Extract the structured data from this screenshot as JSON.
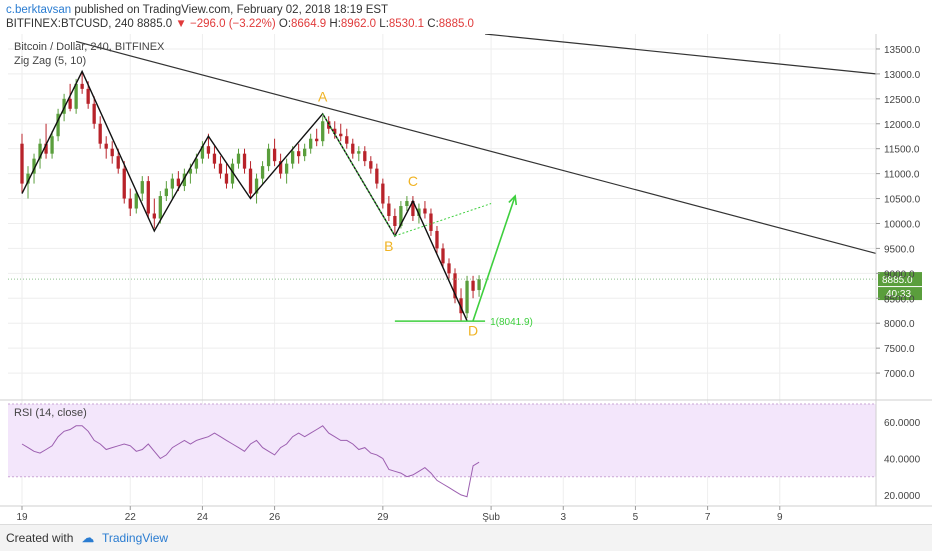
{
  "header": {
    "author": "c.berktavsan",
    "published": "published on TradingView.com, February 02, 2018 18:19 EST",
    "symbol_line_prefix": "BITFINEX:BTCUSD, 240",
    "last": "8885.0",
    "change": "−296.0 (−3.22%)",
    "o_label": "O:",
    "o_val": "8664.9",
    "h_label": "H:",
    "h_val": "8962.0",
    "l_label": "L:",
    "l_val": "8530.1",
    "c_label": "C:",
    "c_val": "8885.0"
  },
  "footer": {
    "created_with": "Created with",
    "brand": "TradingView"
  },
  "colors": {
    "up": "#5a9e3c",
    "down": "#b8232a",
    "accent": "#f0b323",
    "rsi_bg": "#f3e6fb",
    "rsi_line": "#9c5fb0",
    "projection": "#3ecf3e"
  },
  "chart_data": [
    {
      "type": "candlestick",
      "title": "Bitcoin / Dollar, 240, BITFINEX",
      "indicator": "Zig Zag (5, 10)",
      "ylim": [
        6500,
        13800
      ],
      "yticks": [
        "13500.0",
        "13000.0",
        "12500.0",
        "12000.0",
        "11500.0",
        "11000.0",
        "10500.0",
        "10000.0",
        "9500.0",
        "9000.0",
        "8500.0",
        "8000.0",
        "7500.0",
        "7000.0"
      ],
      "last_price_label": "8885.0",
      "countdown_label": "40:33",
      "x_tick_labels": [
        {
          "label": "19",
          "t": 0
        },
        {
          "label": "22",
          "t": 18
        },
        {
          "label": "24",
          "t": 30
        },
        {
          "label": "26",
          "t": 42
        },
        {
          "label": "29",
          "t": 60
        },
        {
          "label": "Şub",
          "t": 78
        },
        {
          "label": "3",
          "t": 90
        },
        {
          "label": "5",
          "t": 102
        },
        {
          "label": "7",
          "t": 114
        },
        {
          "label": "9",
          "t": 126
        }
      ],
      "candles": [
        {
          "t": 0,
          "o": 11600,
          "h": 11800,
          "l": 10600,
          "c": 10800
        },
        {
          "t": 1,
          "o": 10800,
          "h": 11150,
          "l": 10500,
          "c": 11000
        },
        {
          "t": 2,
          "o": 11000,
          "h": 11400,
          "l": 10800,
          "c": 11300
        },
        {
          "t": 3,
          "o": 11300,
          "h": 11700,
          "l": 11100,
          "c": 11600
        },
        {
          "t": 4,
          "o": 11600,
          "h": 12000,
          "l": 11300,
          "c": 11400
        },
        {
          "t": 5,
          "o": 11400,
          "h": 11850,
          "l": 11300,
          "c": 11750
        },
        {
          "t": 6,
          "o": 11750,
          "h": 12300,
          "l": 11650,
          "c": 12200
        },
        {
          "t": 7,
          "o": 12200,
          "h": 12600,
          "l": 12050,
          "c": 12500
        },
        {
          "t": 8,
          "o": 12500,
          "h": 12800,
          "l": 12250,
          "c": 12300
        },
        {
          "t": 9,
          "o": 12300,
          "h": 12900,
          "l": 12200,
          "c": 12800
        },
        {
          "t": 10,
          "o": 12800,
          "h": 13050,
          "l": 12600,
          "c": 12700
        },
        {
          "t": 11,
          "o": 12700,
          "h": 12850,
          "l": 12300,
          "c": 12400
        },
        {
          "t": 12,
          "o": 12400,
          "h": 12550,
          "l": 11900,
          "c": 12000
        },
        {
          "t": 13,
          "o": 12000,
          "h": 12150,
          "l": 11500,
          "c": 11600
        },
        {
          "t": 14,
          "o": 11600,
          "h": 11750,
          "l": 11300,
          "c": 11500
        },
        {
          "t": 15,
          "o": 11500,
          "h": 11650,
          "l": 11200,
          "c": 11350
        },
        {
          "t": 16,
          "o": 11350,
          "h": 11500,
          "l": 11000,
          "c": 11100
        },
        {
          "t": 17,
          "o": 11100,
          "h": 11250,
          "l": 10400,
          "c": 10500
        },
        {
          "t": 18,
          "o": 10500,
          "h": 10700,
          "l": 10150,
          "c": 10300
        },
        {
          "t": 19,
          "o": 10300,
          "h": 10650,
          "l": 10200,
          "c": 10600
        },
        {
          "t": 20,
          "o": 10600,
          "h": 10950,
          "l": 10450,
          "c": 10850
        },
        {
          "t": 21,
          "o": 10850,
          "h": 10950,
          "l": 10100,
          "c": 10200
        },
        {
          "t": 22,
          "o": 10200,
          "h": 10500,
          "l": 9900,
          "c": 10100
        },
        {
          "t": 23,
          "o": 10100,
          "h": 10650,
          "l": 10000,
          "c": 10550
        },
        {
          "t": 24,
          "o": 10550,
          "h": 10850,
          "l": 10450,
          "c": 10700
        },
        {
          "t": 25,
          "o": 10700,
          "h": 11000,
          "l": 10500,
          "c": 10900
        },
        {
          "t": 26,
          "o": 10900,
          "h": 11050,
          "l": 10650,
          "c": 10750
        },
        {
          "t": 27,
          "o": 10750,
          "h": 11100,
          "l": 10650,
          "c": 11000
        },
        {
          "t": 28,
          "o": 11000,
          "h": 11200,
          "l": 10800,
          "c": 11100
        },
        {
          "t": 29,
          "o": 11100,
          "h": 11400,
          "l": 11000,
          "c": 11300
        },
        {
          "t": 30,
          "o": 11300,
          "h": 11650,
          "l": 11200,
          "c": 11550
        },
        {
          "t": 31,
          "o": 11550,
          "h": 11800,
          "l": 11300,
          "c": 11400
        },
        {
          "t": 32,
          "o": 11400,
          "h": 11550,
          "l": 11100,
          "c": 11200
        },
        {
          "t": 33,
          "o": 11200,
          "h": 11350,
          "l": 10900,
          "c": 11000
        },
        {
          "t": 34,
          "o": 11000,
          "h": 11200,
          "l": 10700,
          "c": 10800
        },
        {
          "t": 35,
          "o": 10800,
          "h": 11300,
          "l": 10700,
          "c": 11200
        },
        {
          "t": 36,
          "o": 11200,
          "h": 11500,
          "l": 11100,
          "c": 11400
        },
        {
          "t": 37,
          "o": 11400,
          "h": 11500,
          "l": 11000,
          "c": 11100
        },
        {
          "t": 38,
          "o": 11100,
          "h": 11250,
          "l": 10500,
          "c": 10600
        },
        {
          "t": 39,
          "o": 10600,
          "h": 11000,
          "l": 10400,
          "c": 10900
        },
        {
          "t": 40,
          "o": 10900,
          "h": 11250,
          "l": 10800,
          "c": 11150
        },
        {
          "t": 41,
          "o": 11150,
          "h": 11600,
          "l": 11050,
          "c": 11500
        },
        {
          "t": 42,
          "o": 11500,
          "h": 11700,
          "l": 11150,
          "c": 11250
        },
        {
          "t": 43,
          "o": 11250,
          "h": 11400,
          "l": 10900,
          "c": 11000
        },
        {
          "t": 44,
          "o": 11000,
          "h": 11300,
          "l": 10800,
          "c": 11200
        },
        {
          "t": 45,
          "o": 11200,
          "h": 11550,
          "l": 11100,
          "c": 11450
        },
        {
          "t": 46,
          "o": 11450,
          "h": 11600,
          "l": 11200,
          "c": 11350
        },
        {
          "t": 47,
          "o": 11350,
          "h": 11600,
          "l": 11250,
          "c": 11500
        },
        {
          "t": 48,
          "o": 11500,
          "h": 11800,
          "l": 11400,
          "c": 11700
        },
        {
          "t": 49,
          "o": 11700,
          "h": 11900,
          "l": 11550,
          "c": 11650
        },
        {
          "t": 50,
          "o": 11650,
          "h": 12150,
          "l": 11550,
          "c": 12050
        },
        {
          "t": 51,
          "o": 12050,
          "h": 12150,
          "l": 11800,
          "c": 11900
        },
        {
          "t": 52,
          "o": 11900,
          "h": 12050,
          "l": 11700,
          "c": 11800
        },
        {
          "t": 53,
          "o": 11800,
          "h": 12000,
          "l": 11650,
          "c": 11750
        },
        {
          "t": 54,
          "o": 11750,
          "h": 11900,
          "l": 11500,
          "c": 11600
        },
        {
          "t": 55,
          "o": 11600,
          "h": 11700,
          "l": 11300,
          "c": 11400
        },
        {
          "t": 56,
          "o": 11400,
          "h": 11550,
          "l": 11250,
          "c": 11450
        },
        {
          "t": 57,
          "o": 11450,
          "h": 11550,
          "l": 11150,
          "c": 11250
        },
        {
          "t": 58,
          "o": 11250,
          "h": 11350,
          "l": 11000,
          "c": 11100
        },
        {
          "t": 59,
          "o": 11100,
          "h": 11200,
          "l": 10700,
          "c": 10800
        },
        {
          "t": 60,
          "o": 10800,
          "h": 10900,
          "l": 10300,
          "c": 10400
        },
        {
          "t": 61,
          "o": 10400,
          "h": 10550,
          "l": 10050,
          "c": 10150
        },
        {
          "t": 62,
          "o": 10150,
          "h": 10300,
          "l": 9800,
          "c": 9950
        },
        {
          "t": 63,
          "o": 9950,
          "h": 10450,
          "l": 9900,
          "c": 10350
        },
        {
          "t": 64,
          "o": 10350,
          "h": 10550,
          "l": 10250,
          "c": 10450
        },
        {
          "t": 65,
          "o": 10450,
          "h": 10550,
          "l": 10050,
          "c": 10150
        },
        {
          "t": 66,
          "o": 10150,
          "h": 10400,
          "l": 10000,
          "c": 10300
        },
        {
          "t": 67,
          "o": 10300,
          "h": 10450,
          "l": 10100,
          "c": 10200
        },
        {
          "t": 68,
          "o": 10200,
          "h": 10300,
          "l": 9750,
          "c": 9850
        },
        {
          "t": 69,
          "o": 9850,
          "h": 9950,
          "l": 9400,
          "c": 9500
        },
        {
          "t": 70,
          "o": 9500,
          "h": 9600,
          "l": 9100,
          "c": 9200
        },
        {
          "t": 71,
          "o": 9200,
          "h": 9300,
          "l": 8900,
          "c": 9000
        },
        {
          "t": 72,
          "o": 9000,
          "h": 9100,
          "l": 8400,
          "c": 8500
        },
        {
          "t": 73,
          "o": 8500,
          "h": 8700,
          "l": 8050,
          "c": 8200
        },
        {
          "t": 74,
          "o": 8200,
          "h": 8950,
          "l": 8100,
          "c": 8850
        },
        {
          "t": 75,
          "o": 8850,
          "h": 8950,
          "l": 8500,
          "c": 8650
        },
        {
          "t": 76,
          "o": 8664.9,
          "h": 8962,
          "l": 8530.1,
          "c": 8885
        }
      ],
      "zigzag": [
        {
          "t": 0,
          "v": 10600
        },
        {
          "t": 10,
          "v": 13050
        },
        {
          "t": 22,
          "v": 9850
        },
        {
          "t": 31,
          "v": 11750
        },
        {
          "t": 38,
          "v": 10500
        },
        {
          "t": 50,
          "v": 12200
        },
        {
          "t": 62,
          "v": 9750
        },
        {
          "t": 65,
          "v": 10450
        },
        {
          "t": 74,
          "v": 8050
        }
      ],
      "trendlines": [
        {
          "from": {
            "t": 9,
            "v": 13650
          },
          "to": {
            "t": 142,
            "v": 9400
          }
        },
        {
          "from": {
            "t": 77,
            "v": 13800
          },
          "to": {
            "t": 142,
            "v": 13000
          }
        }
      ],
      "projection": {
        "from": {
          "t": 75,
          "v": 8050
        },
        "to": {
          "t": 82,
          "v": 10550
        }
      },
      "abcd_helper": [
        {
          "t": 50,
          "v": 12200
        },
        {
          "t": 62,
          "v": 9750
        }
      ],
      "abcd_helper2": [
        {
          "t": 62,
          "v": 9750
        },
        {
          "t": 78,
          "v": 10400
        }
      ],
      "points": [
        {
          "label": "A",
          "t": 50,
          "v": 12450
        },
        {
          "label": "B",
          "t": 61,
          "v": 9450
        },
        {
          "label": "C",
          "t": 65,
          "v": 10750
        },
        {
          "label": "D",
          "t": 75,
          "v": 7750
        }
      ],
      "level": {
        "label": "1(8041.9)",
        "value": 8041.9,
        "from_t": 62,
        "to_t": 77
      }
    },
    {
      "type": "line",
      "title": "RSI (14, close)",
      "ylim": [
        15,
        70
      ],
      "yticks": [
        "60.0000",
        "40.0000",
        "20.0000"
      ],
      "band": [
        30,
        70
      ],
      "values": [
        48,
        46,
        44,
        43,
        45,
        47,
        52,
        55,
        56,
        58,
        58,
        55,
        50,
        48,
        45,
        46,
        47,
        48,
        47,
        44,
        45,
        48,
        44,
        40,
        42,
        46,
        48,
        50,
        48,
        50,
        51,
        52,
        54,
        52,
        50,
        48,
        46,
        44,
        48,
        50,
        46,
        44,
        42,
        46,
        48,
        52,
        54,
        52,
        54,
        56,
        58,
        54,
        52,
        50,
        50,
        48,
        45,
        46,
        43,
        42,
        40,
        34,
        33,
        32,
        30,
        31,
        33,
        35,
        32,
        28,
        26,
        24,
        22,
        20,
        19,
        36,
        38
      ],
      "x_offset": 0
    }
  ]
}
